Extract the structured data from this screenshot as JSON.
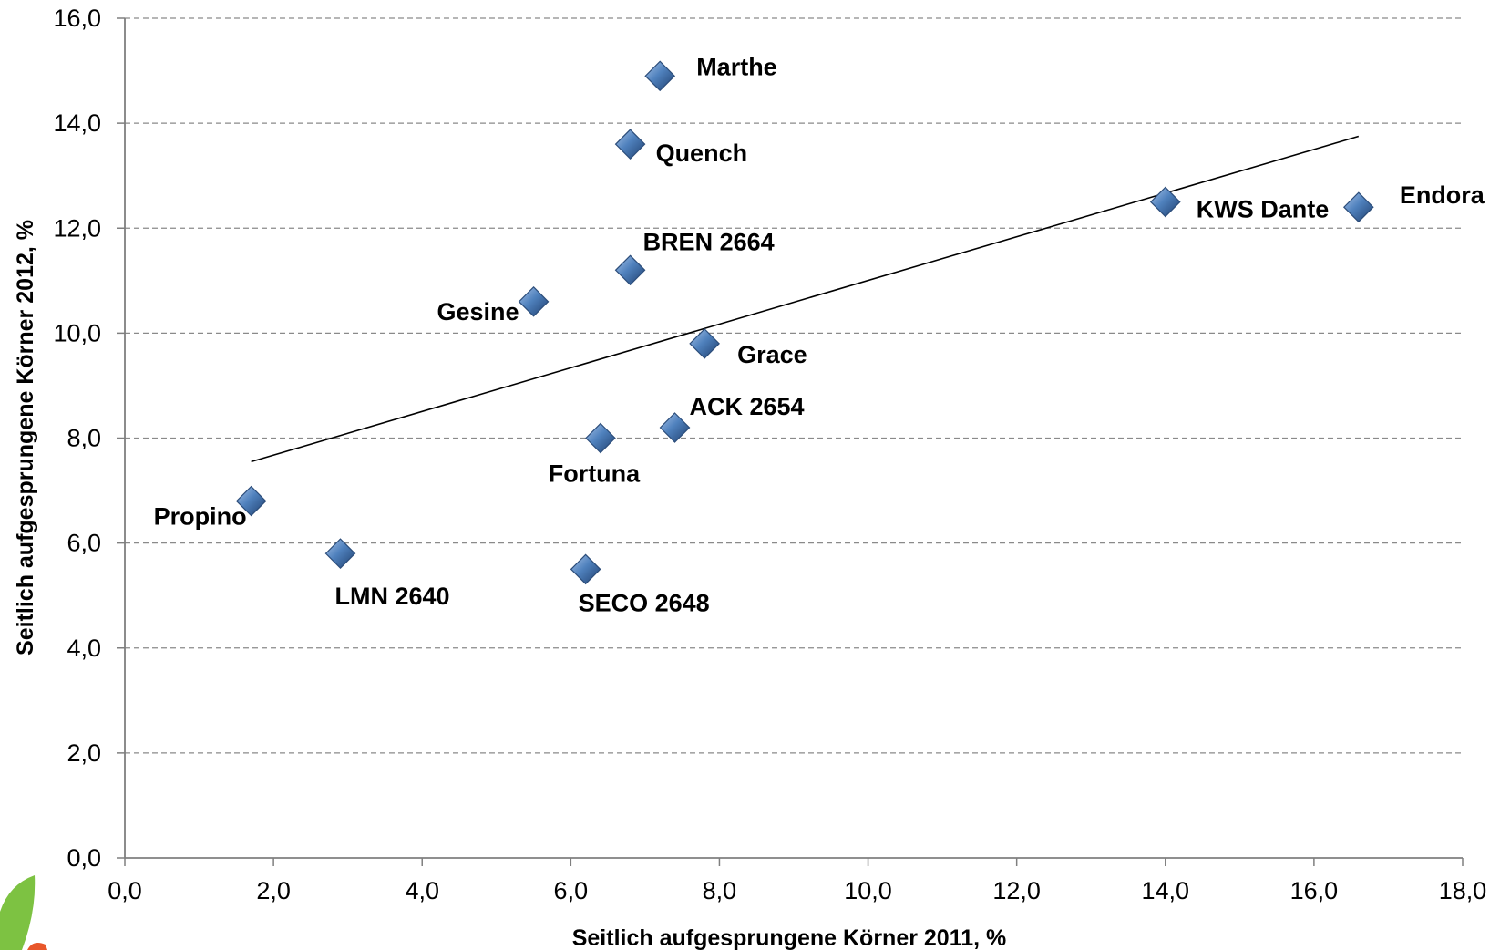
{
  "chart_data": {
    "type": "scatter",
    "title": "",
    "xlabel": "Seitlich aufgesprungene Körner 2011, %",
    "ylabel": "Seitlich aufgesprungene Körner 2012, %",
    "xlim": [
      0,
      18
    ],
    "ylim": [
      0,
      16
    ],
    "x_ticks": [
      "0,0",
      "2,0",
      "4,0",
      "6,0",
      "8,0",
      "10,0",
      "12,0",
      "14,0",
      "16,0",
      "18,0"
    ],
    "y_ticks": [
      "0,0",
      "2,0",
      "4,0",
      "6,0",
      "8,0",
      "10,0",
      "12,0",
      "14,0",
      "16,0"
    ],
    "grid": "horizontal-dashed",
    "marker": "diamond",
    "marker_color": "#4f81bd",
    "points": [
      {
        "label": "Marthe",
        "x": 7.2,
        "y": 14.9
      },
      {
        "label": "Quench",
        "x": 6.8,
        "y": 13.6
      },
      {
        "label": "KWS Dante",
        "x": 14.0,
        "y": 12.5
      },
      {
        "label": "Endora",
        "x": 16.6,
        "y": 12.4
      },
      {
        "label": "BREN 2664",
        "x": 6.8,
        "y": 11.2
      },
      {
        "label": "Gesine",
        "x": 5.5,
        "y": 10.6
      },
      {
        "label": "Grace",
        "x": 7.8,
        "y": 9.8
      },
      {
        "label": "ACK 2654",
        "x": 7.4,
        "y": 8.2
      },
      {
        "label": "Fortuna",
        "x": 6.4,
        "y": 8.0
      },
      {
        "label": "Propino",
        "x": 1.7,
        "y": 6.8
      },
      {
        "label": "LMN 2640",
        "x": 2.9,
        "y": 5.8
      },
      {
        "label": "SECO 2648",
        "x": 6.2,
        "y": 5.5
      }
    ],
    "trendline": {
      "x": [
        1.7,
        16.6
      ],
      "y": [
        7.55,
        13.75
      ]
    }
  }
}
